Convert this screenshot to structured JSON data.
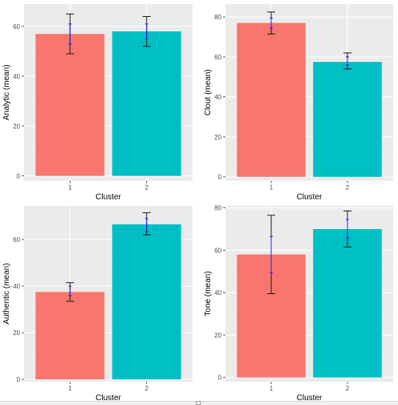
{
  "chart_data": [
    {
      "type": "bar",
      "categories": [
        "1",
        "2"
      ],
      "xlabel": "Cluster",
      "ylabel": "Analytic (mean)",
      "ylim": [
        -2,
        69
      ],
      "yticks": [
        0,
        20,
        40,
        60
      ],
      "grid": true,
      "values": [
        57,
        58
      ],
      "error_bars": [
        {
          "low": 49,
          "high": 65
        },
        {
          "low": 52,
          "high": 64
        }
      ],
      "inner_intervals": [
        {
          "low": 53,
          "high": 61
        },
        {
          "low": 55,
          "high": 61
        }
      ]
    },
    {
      "type": "bar",
      "categories": [
        "1",
        "2"
      ],
      "xlabel": "Cluster",
      "ylabel": "Clout (mean)",
      "ylim": [
        -2,
        86.5
      ],
      "yticks": [
        0,
        20,
        40,
        60,
        80
      ],
      "grid": true,
      "values": [
        77,
        57.5
      ],
      "error_bars": [
        {
          "low": 71.5,
          "high": 82.5
        },
        {
          "low": 54,
          "high": 62
        }
      ],
      "inner_intervals": [
        {
          "low": 74.5,
          "high": 79.5
        },
        {
          "low": 56,
          "high": 60
        }
      ]
    },
    {
      "type": "bar",
      "categories": [
        "1",
        "2"
      ],
      "xlabel": "Cluster",
      "ylabel": "Authentic (mean)",
      "ylim": [
        -1,
        74.5
      ],
      "yticks": [
        0,
        20,
        40,
        60
      ],
      "grid": true,
      "values": [
        37.5,
        66.5
      ],
      "error_bars": [
        {
          "low": 33.5,
          "high": 41.5
        },
        {
          "low": 62,
          "high": 71.5
        }
      ],
      "inner_intervals": [
        {
          "low": 36,
          "high": 40
        },
        {
          "low": 63.5,
          "high": 69
        }
      ]
    },
    {
      "type": "bar",
      "categories": [
        "1",
        "2"
      ],
      "xlabel": "Cluster",
      "ylabel": "Tone (mean)",
      "ylim": [
        -2,
        81
      ],
      "yticks": [
        0,
        20,
        40,
        60,
        80
      ],
      "grid": true,
      "values": [
        58,
        70
      ],
      "error_bars": [
        {
          "low": 39.5,
          "high": 76.5
        },
        {
          "low": 61.5,
          "high": 78.5
        }
      ],
      "inner_intervals": [
        {
          "low": 49.5,
          "high": 66.5
        },
        {
          "low": 66,
          "high": 74.5
        }
      ]
    }
  ],
  "colors": {
    "cluster_1": "#F8766D",
    "cluster_2": "#00BFC4",
    "panel_background": "#EBEBEB",
    "grid_major": "#FFFFFF",
    "grid_minor": "#F5F5F5",
    "outer_error_bar": "#1a1a1a",
    "inner_error_bar": "#2222ee"
  }
}
